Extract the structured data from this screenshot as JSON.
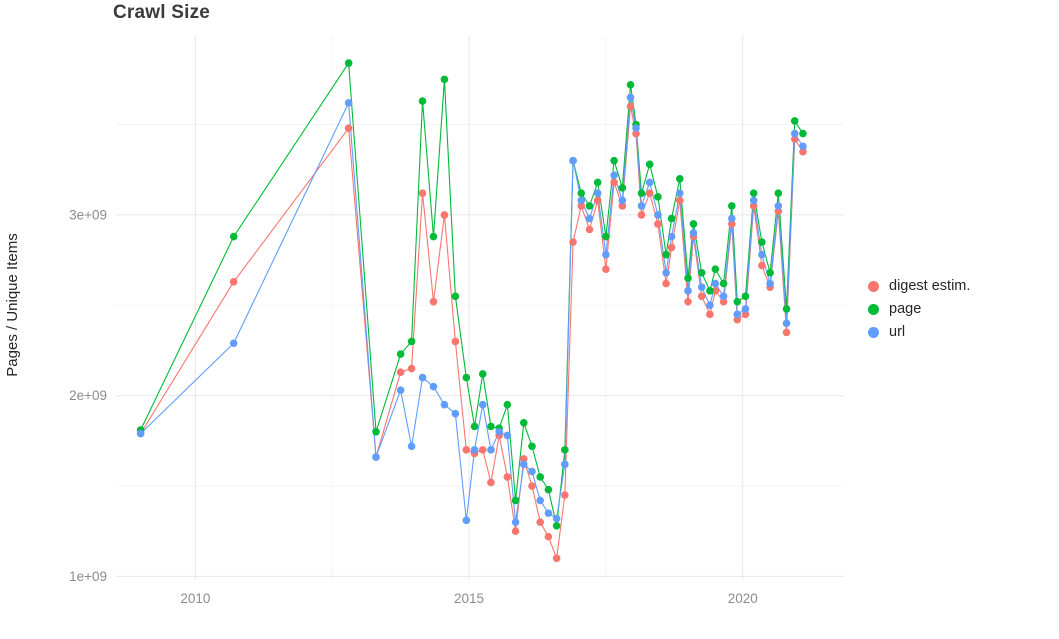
{
  "chart_data": {
    "type": "line",
    "title": "Crawl Size",
    "xlabel": "",
    "ylabel": "Pages / Unique Items",
    "value_unit": "1e+09",
    "xlim": [
      2008.55,
      2021.85
    ],
    "ylim": [
      0.98,
      3.99
    ],
    "x_ticks": [
      2010,
      2015,
      2020
    ],
    "x_tick_labels": [
      "2010",
      "2015",
      "2020"
    ],
    "y_ticks": [
      1,
      2,
      3
    ],
    "y_tick_labels": [
      "1e+09",
      "2e+09",
      "3e+09"
    ],
    "grid": true,
    "legend_position": "right",
    "background_color": "#ffffff",
    "grid_major_color": "#e7e7e7",
    "grid_minor_color": "#f3f3f3",
    "tick_label_color": "#8c8c8c",
    "x": [
      2009.0,
      2010.7,
      2012.8,
      2013.3,
      2013.75,
      2013.95,
      2014.15,
      2014.35,
      2014.55,
      2014.75,
      2014.95,
      2015.1,
      2015.25,
      2015.4,
      2015.55,
      2015.7,
      2015.85,
      2016.0,
      2016.15,
      2016.3,
      2016.45,
      2016.6,
      2016.75,
      2016.9,
      2017.05,
      2017.2,
      2017.35,
      2017.5,
      2017.65,
      2017.8,
      2017.95,
      2018.05,
      2018.15,
      2018.3,
      2018.45,
      2018.6,
      2018.7,
      2018.85,
      2019.0,
      2019.1,
      2019.25,
      2019.4,
      2019.5,
      2019.65,
      2019.8,
      2019.9,
      2020.05,
      2020.2,
      2020.35,
      2020.5,
      2020.65,
      2020.8,
      2020.95,
      2021.1
    ],
    "series": [
      {
        "name": "digest estim.",
        "color": "#F8766D",
        "values": [
          1.79,
          2.63,
          3.48,
          1.66,
          2.13,
          2.15,
          3.12,
          2.52,
          3.0,
          2.3,
          1.7,
          1.68,
          1.7,
          1.52,
          1.78,
          1.55,
          1.25,
          1.65,
          1.5,
          1.3,
          1.22,
          1.1,
          1.45,
          2.85,
          3.05,
          2.92,
          3.08,
          2.7,
          3.18,
          3.05,
          3.6,
          3.45,
          3.0,
          3.12,
          2.95,
          2.62,
          2.82,
          3.08,
          2.52,
          2.88,
          2.55,
          2.45,
          2.58,
          2.52,
          2.95,
          2.42,
          2.45,
          3.05,
          2.72,
          2.6,
          3.02,
          2.35,
          3.42,
          3.35
        ]
      },
      {
        "name": "page",
        "color": "#00BA38",
        "values": [
          1.81,
          2.88,
          3.84,
          1.8,
          2.23,
          2.3,
          3.63,
          2.88,
          3.75,
          2.55,
          2.1,
          1.83,
          2.12,
          1.83,
          1.82,
          1.95,
          1.42,
          1.85,
          1.72,
          1.55,
          1.48,
          1.28,
          1.7,
          3.3,
          3.12,
          3.05,
          3.18,
          2.88,
          3.3,
          3.15,
          3.72,
          3.5,
          3.12,
          3.28,
          3.1,
          2.78,
          2.98,
          3.2,
          2.65,
          2.95,
          2.68,
          2.58,
          2.7,
          2.62,
          3.05,
          2.52,
          2.55,
          3.12,
          2.85,
          2.68,
          3.12,
          2.48,
          3.52,
          3.45
        ]
      },
      {
        "name": "url",
        "color": "#619CFF",
        "values": [
          1.79,
          2.29,
          3.62,
          1.66,
          2.03,
          1.72,
          2.1,
          2.05,
          1.95,
          1.9,
          1.31,
          1.7,
          1.95,
          1.7,
          1.8,
          1.78,
          1.3,
          1.62,
          1.58,
          1.42,
          1.35,
          1.32,
          1.62,
          3.3,
          3.08,
          2.98,
          3.12,
          2.78,
          3.22,
          3.08,
          3.65,
          3.48,
          3.05,
          3.18,
          3.0,
          2.68,
          2.88,
          3.12,
          2.58,
          2.9,
          2.6,
          2.5,
          2.62,
          2.55,
          2.98,
          2.45,
          2.48,
          3.08,
          2.78,
          2.62,
          3.05,
          2.4,
          3.45,
          3.38
        ]
      }
    ]
  }
}
